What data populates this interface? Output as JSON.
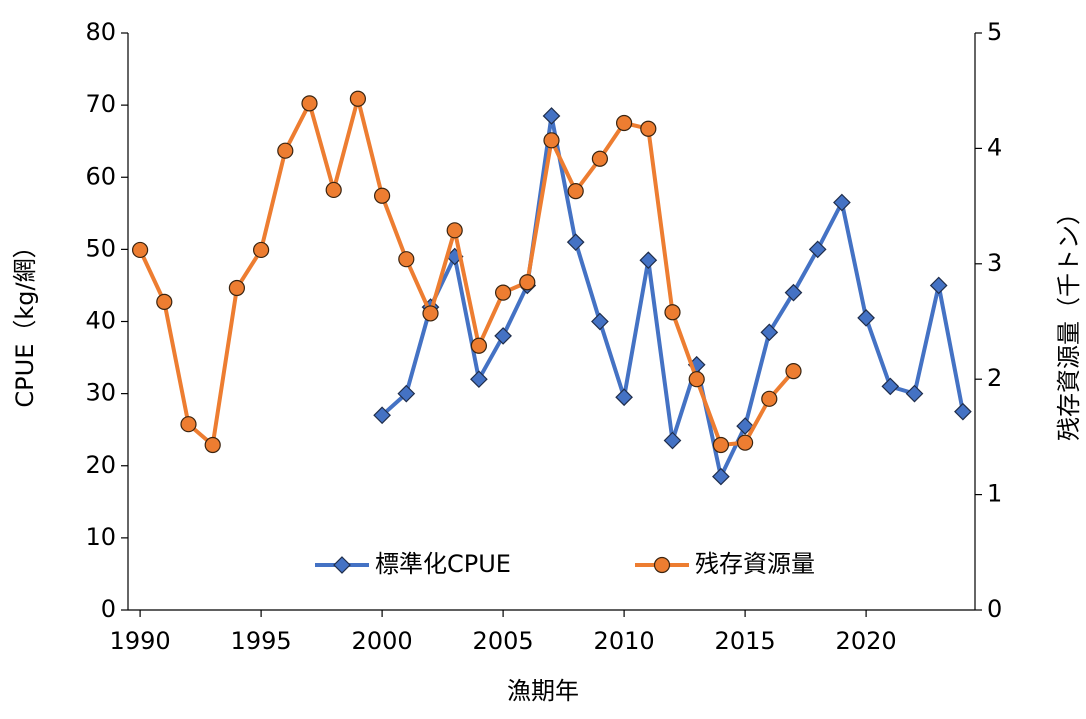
{
  "chart_data": {
    "type": "line",
    "x": [
      1990,
      1991,
      1992,
      1993,
      1994,
      1995,
      1996,
      1997,
      1998,
      1999,
      2000,
      2001,
      2002,
      2003,
      2004,
      2005,
      2006,
      2007,
      2008,
      2009,
      2010,
      2011,
      2012,
      2013,
      2014,
      2015,
      2016,
      2017,
      2018,
      2019,
      2020,
      2021,
      2022,
      2023,
      2024
    ],
    "xlim": [
      1989.5,
      2024.5
    ],
    "xticks": [
      1990,
      1995,
      2000,
      2005,
      2010,
      2015,
      2020
    ],
    "ylim": [
      0,
      80
    ],
    "yticks": [
      0,
      10,
      20,
      30,
      40,
      50,
      60,
      70,
      80
    ],
    "y2lim": [
      0,
      5
    ],
    "y2ticks": [
      0,
      1,
      2,
      3,
      4,
      5
    ],
    "xlabel": "漁期年",
    "ylabel": "CPUE（kg/網）",
    "y2label": "残存資源量（千トン）",
    "legend": "bottom",
    "series": [
      {
        "name": "標準化CPUE",
        "color": "#4472c4",
        "marker": "diamond",
        "values": [
          null,
          null,
          null,
          null,
          null,
          null,
          null,
          null,
          null,
          null,
          27,
          30,
          42,
          49,
          32,
          38,
          45,
          68.5,
          51,
          40,
          29.5,
          48.5,
          23.5,
          34,
          18.5,
          25.5,
          38.5,
          44,
          50,
          56.5,
          40.5,
          31,
          30,
          45,
          27.5
        ]
      },
      {
        "name": "残存資源量",
        "color": "#ed7d31",
        "marker": "circle",
        "axis": "y2",
        "values": [
          3.12,
          2.67,
          1.61,
          1.43,
          2.79,
          3.12,
          3.98,
          4.39,
          3.64,
          4.43,
          3.59,
          3.04,
          2.57,
          3.29,
          2.29,
          2.75,
          2.84,
          4.07,
          3.63,
          3.91,
          4.22,
          4.17,
          2.58,
          2.0,
          1.43,
          1.45,
          1.83,
          2.07,
          null,
          null,
          null,
          null,
          null,
          null,
          null
        ]
      }
    ]
  }
}
